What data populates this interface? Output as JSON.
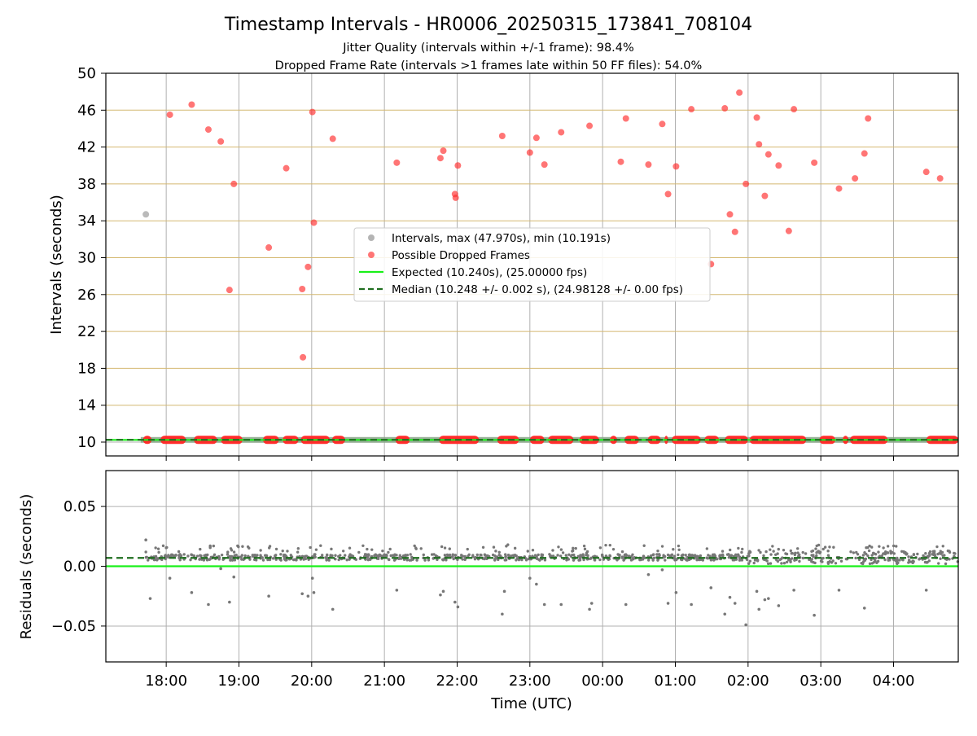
{
  "colors": {
    "grid": "#b0b0b0",
    "hgrid_top": "#d4b870",
    "interval_point": "#8c8c8c",
    "dropped_point": "#ff2b2b",
    "expected_line": "#19f019",
    "median_line": "#1f6e1f",
    "band_fill": "#8aa58a",
    "residual_point": "#777777"
  },
  "chart_data": [
    {
      "type": "scatter",
      "title": "Timestamp Intervals - HR0006_20250315_173841_708104",
      "subtitle_lines": [
        "Jitter Quality (intervals within +/-1 frame): 98.4%",
        "Dropped Frame Rate (intervals >1 frames late within 50 FF files): 54.0%"
      ],
      "xlabel": "",
      "ylabel": "Intervals (seconds)",
      "x_unit": "hours since 17:00 UTC",
      "xlim": [
        0.17,
        11.89
      ],
      "ylim": [
        8.5,
        50
      ],
      "yticks": [
        10,
        14,
        18,
        22,
        26,
        30,
        34,
        38,
        42,
        46,
        50
      ],
      "legend_position": "center",
      "legend": [
        {
          "label": "Intervals, max (47.970s), min (10.191s)",
          "kind": "gray-point"
        },
        {
          "label": "Possible Dropped Frames",
          "kind": "red-point"
        },
        {
          "label": "Expected (10.240s), (25.00000 fps)",
          "kind": "green-line"
        },
        {
          "label": "Median (10.248 +/- 0.002 s), (24.98128 +/- 0.00 fps)",
          "kind": "dashed-line"
        }
      ],
      "expected_value": 10.24,
      "median_value": 10.248,
      "series": [
        {
          "name": "Intervals, max (47.970s), min (10.191s)",
          "points": [
            [
              0.72,
              34.7
            ]
          ]
        },
        {
          "name": "Possible Dropped Frames",
          "points": [
            [
              1.05,
              45.5
            ],
            [
              1.35,
              46.6
            ],
            [
              1.58,
              43.9
            ],
            [
              1.75,
              42.6
            ],
            [
              1.87,
              26.5
            ],
            [
              1.93,
              38.0
            ],
            [
              2.41,
              31.1
            ],
            [
              2.65,
              39.7
            ],
            [
              2.87,
              26.6
            ],
            [
              2.88,
              19.2
            ],
            [
              2.95,
              29.0
            ],
            [
              3.01,
              45.8
            ],
            [
              3.03,
              33.8
            ],
            [
              3.29,
              42.9
            ],
            [
              4.17,
              40.3
            ],
            [
              4.77,
              40.8
            ],
            [
              4.81,
              41.6
            ],
            [
              4.97,
              36.9
            ],
            [
              4.98,
              36.5
            ],
            [
              5.01,
              40.0
            ],
            [
              5.62,
              43.2
            ],
            [
              6.0,
              41.4
            ],
            [
              6.09,
              43.0
            ],
            [
              6.2,
              40.1
            ],
            [
              6.43,
              43.6
            ],
            [
              6.82,
              44.3
            ],
            [
              7.25,
              40.4
            ],
            [
              7.32,
              45.1
            ],
            [
              7.63,
              40.1
            ],
            [
              7.82,
              44.5
            ],
            [
              7.9,
              36.9
            ],
            [
              8.01,
              39.9
            ],
            [
              8.22,
              46.1
            ],
            [
              8.49,
              29.3
            ],
            [
              8.68,
              46.2
            ],
            [
              8.75,
              34.7
            ],
            [
              8.82,
              32.8
            ],
            [
              8.88,
              47.9
            ],
            [
              8.97,
              38.0
            ],
            [
              9.12,
              45.2
            ],
            [
              9.15,
              42.3
            ],
            [
              9.23,
              36.7
            ],
            [
              9.28,
              41.2
            ],
            [
              9.42,
              40.0
            ],
            [
              9.56,
              32.9
            ],
            [
              9.63,
              46.1
            ],
            [
              9.91,
              40.3
            ],
            [
              10.25,
              37.5
            ],
            [
              10.47,
              38.6
            ],
            [
              10.6,
              41.3
            ],
            [
              10.65,
              45.1
            ],
            [
              11.45,
              39.3
            ],
            [
              11.64,
              38.6
            ]
          ]
        }
      ],
      "dropped_band_segments": [
        [
          0.68,
          0.8
        ],
        [
          0.92,
          1.27
        ],
        [
          1.38,
          1.7
        ],
        [
          1.75,
          2.05
        ],
        [
          2.33,
          2.55
        ],
        [
          2.6,
          2.82
        ],
        [
          2.85,
          3.25
        ],
        [
          3.28,
          3.46
        ],
        [
          4.15,
          4.35
        ],
        [
          4.75,
          5.3
        ],
        [
          5.55,
          5.85
        ],
        [
          6.0,
          6.2
        ],
        [
          6.25,
          6.6
        ],
        [
          6.68,
          6.95
        ],
        [
          7.1,
          7.2
        ],
        [
          7.3,
          7.5
        ],
        [
          7.62,
          7.8
        ],
        [
          7.85,
          7.9
        ],
        [
          7.95,
          8.35
        ],
        [
          8.4,
          8.6
        ],
        [
          8.68,
          9.0
        ],
        [
          9.02,
          9.8
        ],
        [
          9.98,
          10.2
        ],
        [
          10.3,
          10.38
        ],
        [
          10.4,
          10.92
        ],
        [
          11.45,
          11.89
        ]
      ],
      "xtick_labels": [
        "18:00",
        "19:00",
        "20:00",
        "21:00",
        "22:00",
        "23:00",
        "00:00",
        "01:00",
        "02:00",
        "03:00",
        "04:00"
      ],
      "xtick_hours": [
        1,
        2,
        3,
        4,
        5,
        6,
        7,
        8,
        9,
        10,
        11
      ]
    },
    {
      "type": "scatter",
      "xlabel": "Time (UTC)",
      "ylabel": "Residuals (seconds)",
      "xlim": [
        0.17,
        11.89
      ],
      "ylim": [
        -0.08,
        0.08
      ],
      "yticks": [
        0.05,
        0.0,
        -0.05
      ],
      "ytick_labels": [
        "0.05",
        "0.00",
        "−0.05"
      ],
      "expected_value": 0.0,
      "median_value": 0.007,
      "residual_outliers": [
        [
          0.72,
          0.022
        ],
        [
          0.78,
          -0.027
        ],
        [
          1.05,
          -0.01
        ],
        [
          1.35,
          -0.022
        ],
        [
          1.58,
          -0.032
        ],
        [
          1.75,
          -0.002
        ],
        [
          1.87,
          -0.03
        ],
        [
          1.93,
          -0.009
        ],
        [
          2.41,
          -0.025
        ],
        [
          2.87,
          -0.023
        ],
        [
          2.95,
          -0.025
        ],
        [
          3.01,
          -0.01
        ],
        [
          3.03,
          -0.022
        ],
        [
          3.29,
          -0.036
        ],
        [
          4.17,
          -0.02
        ],
        [
          4.77,
          -0.024
        ],
        [
          4.81,
          -0.021
        ],
        [
          4.97,
          -0.03
        ],
        [
          5.01,
          -0.034
        ],
        [
          5.62,
          -0.04
        ],
        [
          5.65,
          -0.021
        ],
        [
          6.0,
          -0.01
        ],
        [
          6.09,
          -0.015
        ],
        [
          6.2,
          -0.032
        ],
        [
          6.43,
          -0.032
        ],
        [
          6.82,
          -0.036
        ],
        [
          6.85,
          -0.031
        ],
        [
          7.32,
          -0.032
        ],
        [
          7.63,
          -0.007
        ],
        [
          7.82,
          -0.003
        ],
        [
          7.9,
          -0.031
        ],
        [
          8.01,
          -0.022
        ],
        [
          8.22,
          -0.032
        ],
        [
          8.49,
          -0.018
        ],
        [
          8.68,
          -0.04
        ],
        [
          8.75,
          -0.026
        ],
        [
          8.82,
          -0.031
        ],
        [
          8.97,
          -0.049
        ],
        [
          9.12,
          -0.021
        ],
        [
          9.15,
          -0.036
        ],
        [
          9.23,
          -0.028
        ],
        [
          9.28,
          -0.027
        ],
        [
          9.42,
          -0.033
        ],
        [
          9.63,
          -0.02
        ],
        [
          9.91,
          -0.041
        ],
        [
          10.25,
          -0.02
        ],
        [
          10.6,
          -0.035
        ],
        [
          11.45,
          -0.02
        ]
      ]
    }
  ]
}
